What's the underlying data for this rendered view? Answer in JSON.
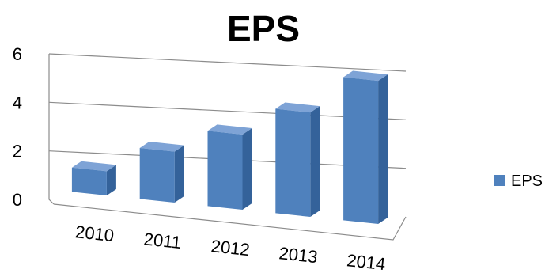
{
  "chart_data": {
    "type": "bar",
    "title": "EPS",
    "categories": [
      "2010",
      "2011",
      "2012",
      "2013",
      "2014"
    ],
    "series": [
      {
        "name": "EPS",
        "values": [
          1.0,
          2.1,
          3.1,
          4.3,
          5.9
        ]
      }
    ],
    "yticks": [
      "0",
      "2",
      "4",
      "6"
    ],
    "ylim": [
      0,
      6
    ],
    "grid": true,
    "legend": "right",
    "style": "3d-column",
    "colors": {
      "bar_front": "#4f81bd",
      "bar_side": "#34629a",
      "bar_top": "#7ea3d6",
      "grid": "#8c8c8c"
    }
  }
}
